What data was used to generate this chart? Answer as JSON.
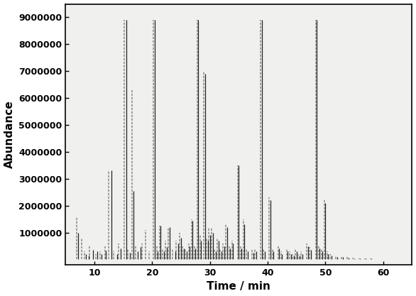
{
  "title": "",
  "xlabel": "Time / min",
  "ylabel": "Abundance",
  "xlim": [
    5,
    65
  ],
  "ylim": [
    -200000,
    9500000
  ],
  "yticks": [
    1000000,
    2000000,
    3000000,
    4000000,
    5000000,
    6000000,
    7000000,
    8000000,
    9000000
  ],
  "xticks": [
    10,
    20,
    30,
    40,
    50,
    60
  ],
  "background_color": "#ffffff",
  "plot_bg_color": "#f0f0ee",
  "series1_color": "#222222",
  "series2_color": "#888888",
  "peaks_black": [
    [
      7.2,
      1000000
    ],
    [
      8.5,
      200000
    ],
    [
      9.0,
      150000
    ],
    [
      9.8,
      350000
    ],
    [
      10.5,
      300000
    ],
    [
      11.2,
      200000
    ],
    [
      12.0,
      330000
    ],
    [
      13.0,
      3300000
    ],
    [
      14.0,
      200000
    ],
    [
      14.5,
      400000
    ],
    [
      15.5,
      8900000
    ],
    [
      16.2,
      250000
    ],
    [
      16.8,
      2550000
    ],
    [
      17.5,
      300000
    ],
    [
      18.0,
      450000
    ],
    [
      20.5,
      8900000
    ],
    [
      21.0,
      300000
    ],
    [
      21.5,
      1250000
    ],
    [
      22.0,
      300000
    ],
    [
      22.5,
      450000
    ],
    [
      23.0,
      1200000
    ],
    [
      24.0,
      300000
    ],
    [
      24.5,
      600000
    ],
    [
      25.0,
      800000
    ],
    [
      25.5,
      400000
    ],
    [
      26.0,
      300000
    ],
    [
      26.5,
      500000
    ],
    [
      27.0,
      1450000
    ],
    [
      27.5,
      400000
    ],
    [
      28.0,
      8900000
    ],
    [
      28.5,
      700000
    ],
    [
      29.2,
      6900000
    ],
    [
      29.7,
      700000
    ],
    [
      30.0,
      900000
    ],
    [
      30.5,
      1000000
    ],
    [
      31.0,
      300000
    ],
    [
      31.5,
      700000
    ],
    [
      32.0,
      300000
    ],
    [
      32.5,
      500000
    ],
    [
      33.0,
      1200000
    ],
    [
      33.5,
      400000
    ],
    [
      34.0,
      600000
    ],
    [
      35.0,
      3500000
    ],
    [
      35.5,
      400000
    ],
    [
      36.0,
      1300000
    ],
    [
      36.5,
      300000
    ],
    [
      37.5,
      250000
    ],
    [
      38.0,
      300000
    ],
    [
      39.0,
      8900000
    ],
    [
      39.5,
      300000
    ],
    [
      40.5,
      2200000
    ],
    [
      41.0,
      300000
    ],
    [
      42.0,
      400000
    ],
    [
      42.5,
      200000
    ],
    [
      43.5,
      300000
    ],
    [
      44.0,
      200000
    ],
    [
      44.5,
      150000
    ],
    [
      45.0,
      300000
    ],
    [
      45.5,
      150000
    ],
    [
      46.0,
      200000
    ],
    [
      47.0,
      500000
    ],
    [
      47.5,
      350000
    ],
    [
      48.5,
      8900000
    ],
    [
      49.0,
      400000
    ],
    [
      49.5,
      300000
    ],
    [
      50.0,
      2100000
    ],
    [
      50.5,
      200000
    ],
    [
      51.0,
      150000
    ],
    [
      52.0,
      100000
    ],
    [
      53.0,
      80000
    ],
    [
      54.0,
      60000
    ],
    [
      55.0,
      50000
    ],
    [
      56.0,
      40000
    ],
    [
      57.0,
      30000
    ],
    [
      58.0,
      30000
    ],
    [
      60.0,
      20000
    ]
  ],
  "peaks_gray": [
    [
      7.0,
      1600000
    ],
    [
      7.8,
      800000
    ],
    [
      8.3,
      300000
    ],
    [
      9.2,
      500000
    ],
    [
      10.2,
      200000
    ],
    [
      11.0,
      300000
    ],
    [
      11.8,
      500000
    ],
    [
      12.5,
      3300000
    ],
    [
      13.3,
      300000
    ],
    [
      14.2,
      600000
    ],
    [
      15.2,
      8900000
    ],
    [
      15.8,
      400000
    ],
    [
      16.5,
      6300000
    ],
    [
      17.2,
      500000
    ],
    [
      18.2,
      600000
    ],
    [
      18.8,
      1100000
    ],
    [
      19.5,
      300000
    ],
    [
      20.2,
      8900000
    ],
    [
      20.8,
      500000
    ],
    [
      21.3,
      1250000
    ],
    [
      21.8,
      400000
    ],
    [
      22.3,
      700000
    ],
    [
      22.8,
      1200000
    ],
    [
      23.5,
      400000
    ],
    [
      24.2,
      700000
    ],
    [
      24.8,
      1000000
    ],
    [
      25.3,
      500000
    ],
    [
      25.8,
      400000
    ],
    [
      26.3,
      600000
    ],
    [
      26.8,
      1500000
    ],
    [
      27.3,
      500000
    ],
    [
      27.8,
      8900000
    ],
    [
      28.3,
      900000
    ],
    [
      28.9,
      7000000
    ],
    [
      29.4,
      800000
    ],
    [
      29.8,
      1200000
    ],
    [
      30.3,
      1200000
    ],
    [
      30.8,
      400000
    ],
    [
      31.3,
      800000
    ],
    [
      31.8,
      400000
    ],
    [
      32.3,
      600000
    ],
    [
      32.8,
      1300000
    ],
    [
      33.3,
      500000
    ],
    [
      33.8,
      700000
    ],
    [
      34.8,
      3500000
    ],
    [
      35.3,
      500000
    ],
    [
      35.8,
      1500000
    ],
    [
      36.3,
      400000
    ],
    [
      37.3,
      350000
    ],
    [
      37.8,
      400000
    ],
    [
      38.8,
      8900000
    ],
    [
      39.3,
      400000
    ],
    [
      40.3,
      2300000
    ],
    [
      40.8,
      400000
    ],
    [
      41.8,
      500000
    ],
    [
      42.3,
      300000
    ],
    [
      43.3,
      400000
    ],
    [
      43.8,
      300000
    ],
    [
      44.3,
      200000
    ],
    [
      44.8,
      400000
    ],
    [
      45.3,
      200000
    ],
    [
      45.8,
      300000
    ],
    [
      46.8,
      600000
    ],
    [
      47.3,
      450000
    ],
    [
      48.3,
      8900000
    ],
    [
      48.8,
      500000
    ],
    [
      49.3,
      400000
    ],
    [
      49.8,
      2200000
    ],
    [
      50.3,
      300000
    ],
    [
      50.8,
      200000
    ],
    [
      51.8,
      150000
    ],
    [
      52.8,
      100000
    ],
    [
      53.8,
      80000
    ],
    [
      54.8,
      60000
    ],
    [
      55.8,
      50000
    ],
    [
      56.8,
      40000
    ],
    [
      57.8,
      30000
    ],
    [
      59.8,
      20000
    ]
  ]
}
